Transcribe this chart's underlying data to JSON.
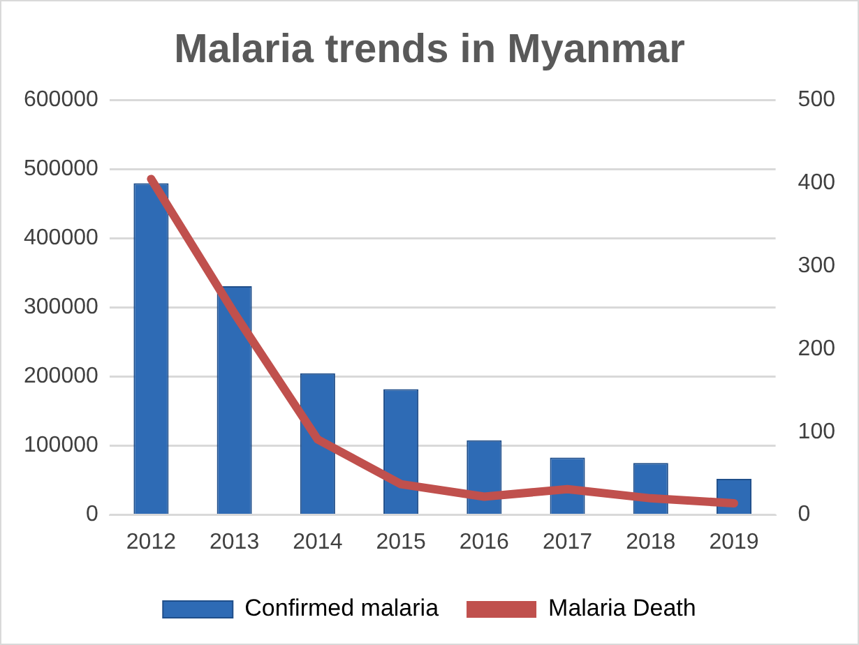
{
  "chart_data": {
    "type": "bar",
    "title": "Malaria trends in Myanmar",
    "categories": [
      "2012",
      "2013",
      "2014",
      "2015",
      "2016",
      "2017",
      "2018",
      "2019"
    ],
    "series": [
      {
        "name": "Confirmed malaria",
        "color": "#2e6bb5",
        "values": [
          480000,
          331000,
          205000,
          182000,
          108000,
          83000,
          75000,
          52000
        ]
      },
      {
        "name": "Malaria Death",
        "type": "line",
        "axis": "y2",
        "color": "#c0504d",
        "values": [
          405,
          243,
          91,
          37,
          22,
          31,
          20,
          14
        ]
      }
    ],
    "ylim": [
      0,
      600000
    ],
    "yticks": [
      0,
      100000,
      200000,
      300000,
      400000,
      500000,
      600000
    ],
    "y2lim": [
      0,
      500
    ],
    "y2ticks": [
      0,
      100,
      200,
      300,
      400,
      500
    ],
    "grid": "y",
    "legend": "bottom",
    "marker": "none"
  }
}
